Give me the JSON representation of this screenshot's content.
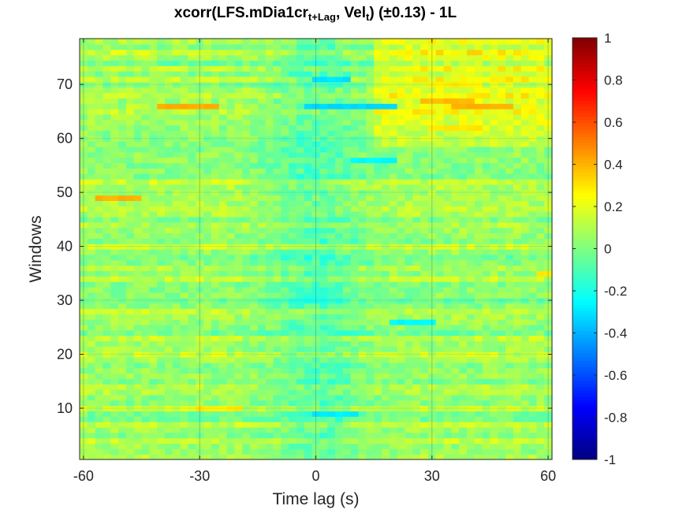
{
  "chart_data": {
    "type": "heatmap",
    "title": {
      "prefix": "xcorr(LFS.mDia1cr",
      "sub1": "t+Lag",
      "middle": ", Vel",
      "sub2": "t",
      "suffix": ")  (±0.13) - 1L"
    },
    "xlabel": "Time lag (s)",
    "ylabel": "Windows",
    "xlim": [
      -61,
      61
    ],
    "ylim": [
      0.5,
      78.5
    ],
    "xticks": [
      -60,
      -30,
      0,
      30,
      60
    ],
    "xtick_labels": [
      "-60",
      "-30",
      "0",
      "30",
      "60"
    ],
    "yticks": [
      10,
      20,
      30,
      40,
      50,
      60,
      70
    ],
    "ytick_labels": [
      "10",
      "20",
      "30",
      "40",
      "50",
      "60",
      "70"
    ],
    "grid": true,
    "colormap": "jet",
    "clim": [
      -1,
      1
    ],
    "colorbar_ticks": [
      1,
      0.8,
      0.6,
      0.4,
      0.2,
      0,
      -0.2,
      -0.4,
      -0.6,
      -0.8,
      -1
    ],
    "colorbar_labels": [
      "1",
      "0.8",
      "0.6",
      "0.4",
      "0.2",
      "0",
      "-0.2",
      "-0.4",
      "-0.6",
      "-0.8",
      "-1"
    ],
    "lag_step_s": 2,
    "n_windows": 78,
    "features": [
      {
        "window": 66,
        "lag_from": -40,
        "lag_to": -26,
        "value": 0.42
      },
      {
        "window": 66,
        "lag_from": 36,
        "lag_to": 50,
        "value": 0.4
      },
      {
        "window": 67,
        "lag_from": 28,
        "lag_to": 40,
        "value": 0.38
      },
      {
        "window": 66,
        "lag_from": -2,
        "lag_to": 20,
        "value": -0.33
      },
      {
        "window": 49,
        "lag_from": -56,
        "lag_to": -46,
        "value": 0.4
      },
      {
        "window": 71,
        "lag_from": 0,
        "lag_to": 8,
        "value": -0.3
      },
      {
        "window": 62,
        "lag_from": 30,
        "lag_to": 42,
        "value": 0.3
      },
      {
        "window": 70,
        "lag_from": 30,
        "lag_to": 42,
        "value": 0.28
      },
      {
        "window": 56,
        "lag_from": 10,
        "lag_to": 20,
        "value": -0.25
      },
      {
        "window": 26,
        "lag_from": 20,
        "lag_to": 30,
        "value": -0.25
      },
      {
        "window": 9,
        "lag_from": 0,
        "lag_to": 10,
        "value": -0.28
      },
      {
        "window": 10,
        "lag_from": -30,
        "lag_to": -20,
        "value": 0.28
      },
      {
        "window": 35,
        "lag_from": 58,
        "lag_to": 62,
        "value": 0.3
      }
    ]
  }
}
